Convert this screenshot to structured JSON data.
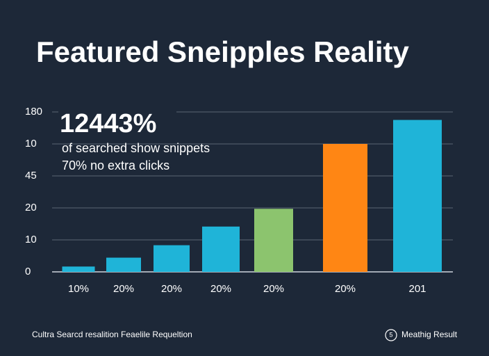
{
  "chart_data": {
    "type": "bar",
    "title": "Featured Sneipples Reality",
    "annotation": {
      "headline": "12443%",
      "lines": [
        "of searched show snippets",
        "70% no extra clicks"
      ]
    },
    "categories": [
      "10%",
      "20%",
      "20%",
      "20%",
      "20%",
      "20%",
      "201"
    ],
    "values": [
      6,
      16,
      30,
      51,
      71,
      144,
      171
    ],
    "colors": [
      "#1fb4d8",
      "#1fb4d8",
      "#1fb4d8",
      "#1fb4d8",
      "#8cc46e",
      "#ff8614",
      "#1fb4d8"
    ],
    "ylim": [
      0,
      180
    ],
    "yticks": [
      0,
      {
        "value": 36,
        "label": "10"
      },
      {
        "value": 72,
        "label": "20"
      },
      {
        "value": 108,
        "label": "45"
      },
      {
        "value": 144,
        "label": "10"
      },
      180
    ],
    "grid": true
  },
  "footer": {
    "left": "Cultra Searcd resalition Feaelile Requeltion",
    "icon": "5",
    "right": "Meathig Result"
  }
}
